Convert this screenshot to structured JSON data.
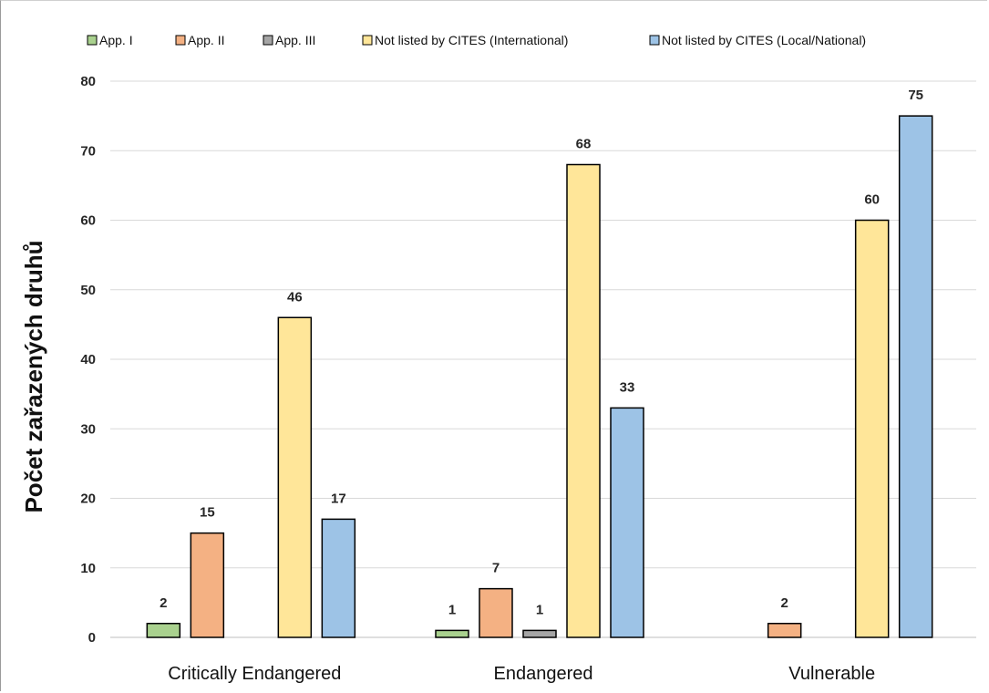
{
  "chart_data": {
    "type": "bar",
    "title": "",
    "xlabel": "",
    "ylabel": "Počet zařazených druhů",
    "ylim": [
      0,
      80
    ],
    "yticks": [
      0,
      10,
      20,
      30,
      40,
      50,
      60,
      70,
      80
    ],
    "grid": true,
    "legend_position": "top",
    "categories": [
      "Critically Endangered",
      "Endangered",
      "Vulnerable"
    ],
    "series": [
      {
        "name": "App. I",
        "color": "#a9d18e",
        "values": [
          2,
          1,
          null
        ]
      },
      {
        "name": "App. II",
        "color": "#f4b183",
        "values": [
          15,
          7,
          2
        ]
      },
      {
        "name": "App. III",
        "color": "#a5a5a5",
        "values": [
          null,
          1,
          null
        ]
      },
      {
        "name": "Not listed by CITES (International)",
        "color": "#ffe699",
        "values": [
          46,
          68,
          60
        ]
      },
      {
        "name": "Not listed by CITES (Local/National)",
        "color": "#9dc3e6",
        "values": [
          17,
          33,
          75
        ]
      }
    ]
  }
}
